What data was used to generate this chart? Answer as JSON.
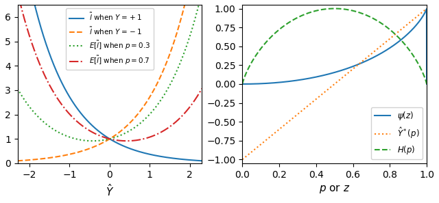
{
  "left": {
    "xlabel": "$\\hat{Y}$",
    "xrange": [
      -2.3,
      2.3
    ],
    "yrange": [
      0.0,
      6.5
    ],
    "yticks": [
      0,
      1,
      2,
      3,
      4,
      5,
      6
    ],
    "xticks": [
      -2,
      -1,
      0,
      1,
      2
    ],
    "legend_labels": [
      "$\\tilde{l}$ when $Y = +1$",
      "$\\tilde{l}$ when $Y = -1$",
      "$E[\\tilde{l}]$ when $p = 0.3$",
      "$E[\\tilde{l}]$ when $p = 0.7$"
    ],
    "line_styles": [
      "-",
      "--",
      ":",
      "-."
    ],
    "line_colors": [
      "#1f77b4",
      "#ff7f0e",
      "#2ca02c",
      "#d62728"
    ],
    "p_values": [
      0.3,
      0.7
    ]
  },
  "right": {
    "xlabel": "$p$ or $z$",
    "xrange": [
      0.0,
      1.0
    ],
    "yrange": [
      -1.05,
      1.05
    ],
    "yticks": [
      -1.0,
      -0.75,
      -0.5,
      -0.25,
      0.0,
      0.25,
      0.5,
      0.75,
      1.0
    ],
    "ytick_labels": [
      "-1.00",
      "-0.75",
      "-0.50",
      "-0.25",
      "0.00",
      "0.25",
      "0.50",
      "0.75",
      "1.00"
    ],
    "xticks": [
      0.0,
      0.2,
      0.4,
      0.6,
      0.8,
      1.0
    ],
    "legend_labels": [
      "$\\psi(z)$",
      "$\\hat{Y}^*(p)$",
      "$H(p)$"
    ],
    "line_styles": [
      "-",
      ":",
      "--"
    ],
    "line_colors": [
      "#1f77b4",
      "#ff7f0e",
      "#2ca02c"
    ]
  }
}
